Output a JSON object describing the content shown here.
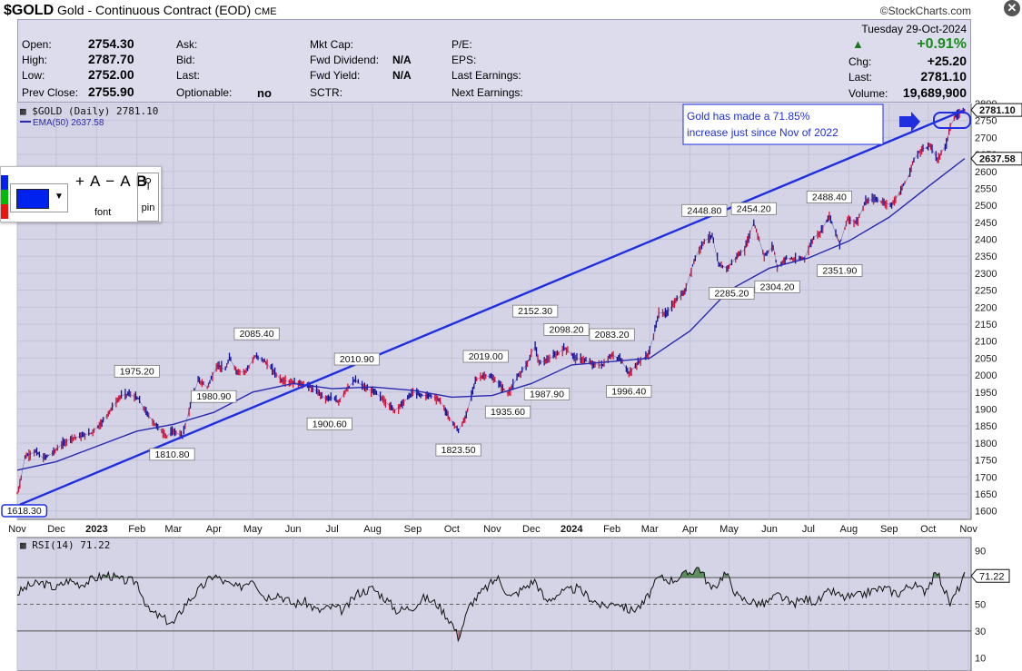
{
  "header": {
    "symbol": "$GOLD",
    "name": "Gold - Continuous Contract (EOD)",
    "exchange": "CME",
    "site": "©StockCharts.com"
  },
  "quote": {
    "open_label": "Open:",
    "open": "2754.30",
    "high_label": "High:",
    "high": "2787.70",
    "low_label": "Low:",
    "low": "2752.00",
    "prev_label": "Prev Close:",
    "prev": "2755.90",
    "ask_label": "Ask:",
    "bid_label": "Bid:",
    "last_label": "Last:",
    "optionable_label": "Optionable:",
    "optionable": "no",
    "mktcap_label": "Mkt Cap:",
    "fwddiv_label": "Fwd Dividend:",
    "fwddiv": "N/A",
    "fwdyield_label": "Fwd Yield:",
    "fwdyield": "N/A",
    "sctr_label": "SCTR:",
    "pe_label": "P/E:",
    "eps_label": "EPS:",
    "lastearn_label": "Last Earnings:",
    "nextearn_label": "Next Earnings:",
    "date": "Tuesday  29-Oct-2024",
    "pct": "+0.91%",
    "chg_label": "Chg:",
    "chg": "+25.20",
    "last2_label": "Last:",
    "last2": "2781.10",
    "volume_label": "Volume:",
    "volume": "19,689,900"
  },
  "toolbar": {
    "plus": "+",
    "minus": "−",
    "bold": "B",
    "font_label": "font",
    "pin_label": "pin",
    "color": "#0022ee"
  },
  "chart_data": [
    {
      "type": "line",
      "title": "$GOLD (Daily) 2781.10",
      "series": [
        {
          "name": "$GOLD (Daily) 2781.10",
          "color": "#1a1aa0",
          "x": [
            "2022-11-01",
            "2022-11-03",
            "2022-11-07",
            "2022-11-15",
            "2022-11-21",
            "2022-11-28",
            "2022-12-05",
            "2022-12-13",
            "2022-12-20",
            "2022-12-28",
            "2023-01-05",
            "2023-01-12",
            "2023-01-20",
            "2023-01-26",
            "2023-02-02",
            "2023-02-09",
            "2023-02-16",
            "2023-02-24",
            "2023-03-01",
            "2023-03-08",
            "2023-03-14",
            "2023-03-20",
            "2023-03-27",
            "2023-04-04",
            "2023-04-10",
            "2023-04-13",
            "2023-04-19",
            "2023-04-25",
            "2023-05-03",
            "2023-05-09",
            "2023-05-15",
            "2023-05-23",
            "2023-05-30",
            "2023-06-06",
            "2023-06-12",
            "2023-06-20",
            "2023-06-26",
            "2023-06-30",
            "2023-07-06",
            "2023-07-12",
            "2023-07-19",
            "2023-07-27",
            "2023-08-03",
            "2023-08-10",
            "2023-08-18",
            "2023-08-25",
            "2023-09-01",
            "2023-09-08",
            "2023-09-15",
            "2023-09-22",
            "2023-09-28",
            "2023-10-06",
            "2023-10-12",
            "2023-10-19",
            "2023-10-26",
            "2023-11-01",
            "2023-11-06",
            "2023-11-13",
            "2023-11-20",
            "2023-11-28",
            "2023-12-01",
            "2023-12-04",
            "2023-12-07",
            "2023-12-13",
            "2023-12-20",
            "2023-12-27",
            "2024-01-04",
            "2024-01-11",
            "2024-01-18",
            "2024-01-25",
            "2024-02-01",
            "2024-02-08",
            "2024-02-14",
            "2024-02-22",
            "2024-02-29",
            "2024-03-04",
            "2024-03-08",
            "2024-03-14",
            "2024-03-21",
            "2024-03-28",
            "2024-04-04",
            "2024-04-08",
            "2024-04-12",
            "2024-04-18",
            "2024-04-23",
            "2024-04-30",
            "2024-05-07",
            "2024-05-13",
            "2024-05-20",
            "2024-05-28",
            "2024-06-04",
            "2024-06-07",
            "2024-06-14",
            "2024-06-21",
            "2024-06-28",
            "2024-07-05",
            "2024-07-10",
            "2024-07-17",
            "2024-07-25",
            "2024-07-31",
            "2024-08-07",
            "2024-08-14",
            "2024-08-20",
            "2024-08-27",
            "2024-09-03",
            "2024-09-10",
            "2024-09-16",
            "2024-09-20",
            "2024-09-26",
            "2024-10-03",
            "2024-10-08",
            "2024-10-15",
            "2024-10-18",
            "2024-10-23",
            "2024-10-29"
          ],
          "y": [
            1650,
            1680,
            1760,
            1775,
            1755,
            1770,
            1795,
            1815,
            1820,
            1830,
            1860,
            1900,
            1940,
            1945,
            1930,
            1885,
            1850,
            1820,
            1835,
            1820,
            1910,
            1985,
            1965,
            2030,
            2015,
            2050,
            2010,
            2010,
            2055,
            2045,
            2020,
            1985,
            1980,
            1975,
            1970,
            1950,
            1930,
            1935,
            1920,
            1960,
            1985,
            1960,
            1950,
            1925,
            1895,
            1920,
            1950,
            1940,
            1940,
            1925,
            1880,
            1835,
            1880,
            1985,
            2000,
            1992,
            1975,
            1945,
            1990,
            2035,
            2065,
            2085,
            2035,
            2045,
            2060,
            2080,
            2050,
            2045,
            2030,
            2030,
            2060,
            2045,
            2005,
            2040,
            2060,
            2115,
            2185,
            2180,
            2220,
            2245,
            2335,
            2370,
            2395,
            2410,
            2325,
            2315,
            2350,
            2370,
            2450,
            2350,
            2380,
            2315,
            2345,
            2340,
            2345,
            2405,
            2420,
            2470,
            2385,
            2460,
            2450,
            2510,
            2520,
            2510,
            2500,
            2545,
            2585,
            2635,
            2665,
            2675,
            2635,
            2680,
            2735,
            2765,
            2781.1
          ]
        },
        {
          "name": "EMA(50) 2637.58",
          "color": "#2a2ab0",
          "x": [
            "2022-11-01",
            "2022-12-01",
            "2023-01-01",
            "2023-02-01",
            "2023-03-01",
            "2023-04-01",
            "2023-05-01",
            "2023-06-01",
            "2023-07-01",
            "2023-08-01",
            "2023-09-01",
            "2023-10-01",
            "2023-11-01",
            "2023-12-01",
            "2024-01-01",
            "2024-02-01",
            "2024-03-01",
            "2024-04-01",
            "2024-05-01",
            "2024-06-01",
            "2024-07-01",
            "2024-08-01",
            "2024-09-01",
            "2024-10-01",
            "2024-10-29"
          ],
          "y": [
            1720,
            1745,
            1790,
            1835,
            1855,
            1890,
            1950,
            1975,
            1960,
            1965,
            1955,
            1935,
            1940,
            1975,
            2030,
            2040,
            2050,
            2130,
            2250,
            2315,
            2345,
            2395,
            2465,
            2555,
            2637.58
          ]
        }
      ],
      "trendline": {
        "x": [
          "2022-11-03",
          "2024-10-29"
        ],
        "y": [
          1618.3,
          2781.1
        ]
      },
      "annotations": [
        {
          "text": "1618.30",
          "x": "2022-11-03",
          "y": 1618.3
        },
        {
          "text": "1975.20",
          "x": "2023-02-01",
          "y": 1975.2
        },
        {
          "text": "1810.80",
          "x": "2023-02-28",
          "y": 1810.8
        },
        {
          "text": "2085.40",
          "x": "2023-05-04",
          "y": 2085.4
        },
        {
          "text": "1980.90",
          "x": "2023-04-01",
          "y": 1980.9
        },
        {
          "text": "2010.90",
          "x": "2023-07-20",
          "y": 2010.9
        },
        {
          "text": "1900.60",
          "x": "2023-06-29",
          "y": 1900.6
        },
        {
          "text": "1823.50",
          "x": "2023-10-06",
          "y": 1823.5
        },
        {
          "text": "2019.00",
          "x": "2023-10-27",
          "y": 2019.0
        },
        {
          "text": "1935.60",
          "x": "2023-11-13",
          "y": 1935.6
        },
        {
          "text": "2152.30",
          "x": "2023-12-04",
          "y": 2152.3
        },
        {
          "text": "1987.90",
          "x": "2023-12-13",
          "y": 1987.9
        },
        {
          "text": "2098.20",
          "x": "2023-12-28",
          "y": 2098.2
        },
        {
          "text": "2083.20",
          "x": "2024-02-01",
          "y": 2083.2
        },
        {
          "text": "1996.40",
          "x": "2024-02-14",
          "y": 1996.4
        },
        {
          "text": "2448.80",
          "x": "2024-04-12",
          "y": 2448.8
        },
        {
          "text": "2454.20",
          "x": "2024-05-20",
          "y": 2454.2
        },
        {
          "text": "2285.20",
          "x": "2024-05-03",
          "y": 2285.2
        },
        {
          "text": "2304.20",
          "x": "2024-06-07",
          "y": 2304.2
        },
        {
          "text": "2488.40",
          "x": "2024-07-17",
          "y": 2488.4
        },
        {
          "text": "2351.90",
          "x": "2024-07-25",
          "y": 2351.9
        }
      ],
      "note_box": {
        "text_line1": "Gold has made a 71.85%",
        "text_line2": "increase just since Nov of 2022"
      },
      "ylim": [
        1575,
        2800
      ],
      "yticks": [
        1600,
        1650,
        1700,
        1750,
        1800,
        1850,
        1900,
        1950,
        2000,
        2050,
        2100,
        2150,
        2200,
        2250,
        2300,
        2350,
        2400,
        2450,
        2500,
        2550,
        2600,
        2650,
        2700,
        2750,
        2800
      ],
      "xticks": [
        {
          "label": "Nov",
          "x": "2022-11-01"
        },
        {
          "label": "Dec",
          "x": "2022-12-01"
        },
        {
          "label": "2023",
          "x": "2023-01-01"
        },
        {
          "label": "Feb",
          "x": "2023-02-01"
        },
        {
          "label": "Mar",
          "x": "2023-03-01"
        },
        {
          "label": "Apr",
          "x": "2023-04-01"
        },
        {
          "label": "May",
          "x": "2023-05-01"
        },
        {
          "label": "Jun",
          "x": "2023-06-01"
        },
        {
          "label": "Jul",
          "x": "2023-07-01"
        },
        {
          "label": "Aug",
          "x": "2023-08-01"
        },
        {
          "label": "Sep",
          "x": "2023-09-01"
        },
        {
          "label": "Oct",
          "x": "2023-10-01"
        },
        {
          "label": "Nov",
          "x": "2023-11-01"
        },
        {
          "label": "Dec",
          "x": "2023-12-01"
        },
        {
          "label": "2024",
          "x": "2024-01-01"
        },
        {
          "label": "Feb",
          "x": "2024-02-01"
        },
        {
          "label": "Mar",
          "x": "2024-03-01"
        },
        {
          "label": "Apr",
          "x": "2024-04-01"
        },
        {
          "label": "May",
          "x": "2024-05-01"
        },
        {
          "label": "Jun",
          "x": "2024-06-01"
        },
        {
          "label": "Jul",
          "x": "2024-07-01"
        },
        {
          "label": "Aug",
          "x": "2024-08-01"
        },
        {
          "label": "Sep",
          "x": "2024-09-01"
        },
        {
          "label": "Oct",
          "x": "2024-10-01"
        },
        {
          "label": "Nov",
          "x": "2024-11-01"
        }
      ],
      "x_range": [
        "2022-11-01",
        "2024-11-03"
      ],
      "last_value": "2781.10",
      "ema_value": "2637.58",
      "grid": true,
      "legend": "top-left"
    },
    {
      "type": "line",
      "title": "RSI(14) 71.22",
      "series": [
        {
          "name": "RSI(14) 71.22",
          "x": [
            "2022-11-01",
            "2022-11-10",
            "2022-11-20",
            "2022-12-01",
            "2022-12-10",
            "2022-12-20",
            "2023-01-01",
            "2023-01-10",
            "2023-01-20",
            "2023-02-01",
            "2023-02-10",
            "2023-02-20",
            "2023-03-01",
            "2023-03-10",
            "2023-03-20",
            "2023-04-01",
            "2023-04-10",
            "2023-04-20",
            "2023-05-01",
            "2023-05-10",
            "2023-05-20",
            "2023-06-01",
            "2023-06-10",
            "2023-06-20",
            "2023-07-01",
            "2023-07-10",
            "2023-07-20",
            "2023-08-01",
            "2023-08-10",
            "2023-08-20",
            "2023-09-01",
            "2023-09-10",
            "2023-09-20",
            "2023-10-01",
            "2023-10-06",
            "2023-10-15",
            "2023-10-25",
            "2023-11-05",
            "2023-11-15",
            "2023-11-25",
            "2023-12-04",
            "2023-12-12",
            "2023-12-22",
            "2024-01-05",
            "2024-01-15",
            "2024-01-25",
            "2024-02-05",
            "2024-02-15",
            "2024-02-25",
            "2024-03-08",
            "2024-03-18",
            "2024-03-28",
            "2024-04-08",
            "2024-04-18",
            "2024-04-28",
            "2024-05-08",
            "2024-05-18",
            "2024-05-28",
            "2024-06-08",
            "2024-06-18",
            "2024-06-28",
            "2024-07-08",
            "2024-07-18",
            "2024-07-28",
            "2024-08-08",
            "2024-08-18",
            "2024-08-28",
            "2024-09-08",
            "2024-09-18",
            "2024-09-28",
            "2024-10-08",
            "2024-10-18",
            "2024-10-29"
          ],
          "y": [
            58,
            64,
            66,
            62,
            68,
            65,
            70,
            72,
            68,
            67,
            45,
            40,
            35,
            50,
            60,
            72,
            66,
            62,
            70,
            55,
            58,
            50,
            52,
            45,
            48,
            45,
            58,
            62,
            55,
            45,
            48,
            55,
            50,
            36,
            25,
            50,
            60,
            70,
            55,
            62,
            68,
            52,
            58,
            62,
            55,
            48,
            52,
            45,
            50,
            70,
            68,
            72,
            78,
            60,
            74,
            55,
            52,
            50,
            57,
            50,
            54,
            52,
            60,
            55,
            56,
            60,
            62,
            58,
            65,
            60,
            74,
            50,
            71.22
          ]
        }
      ],
      "ylim": [
        0,
        100
      ],
      "levels": [
        70,
        50,
        30
      ],
      "yticks": [
        90,
        70,
        50,
        30,
        10
      ],
      "overbought": 70,
      "oversold": 30,
      "last_value": "71.22"
    }
  ]
}
